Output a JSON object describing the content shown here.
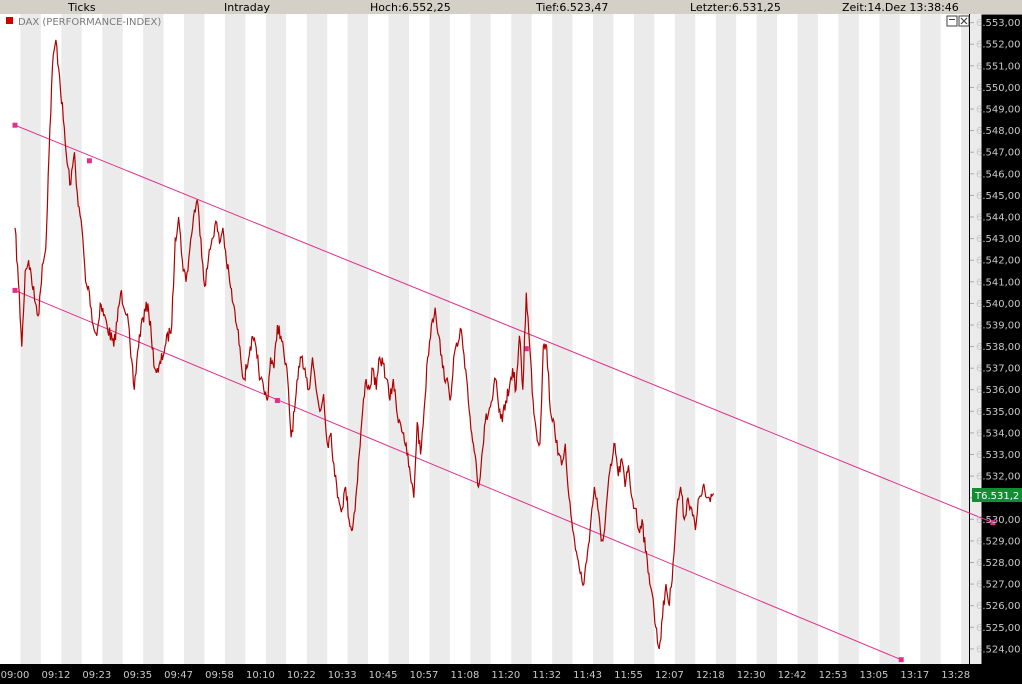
{
  "header": {
    "mode": "Ticks",
    "period": "Intraday",
    "high": "Hoch:6.552,25",
    "low": "Tief:6.523,47",
    "last": "Letzter:6.531,25",
    "time": "Zeit:14.Dez 13:38:46"
  },
  "instrument_label": "DAX (PERFORMANCE-INDEX)",
  "price_tag": "T6.531,2",
  "colors": {
    "price_line": "#b00000",
    "channel": "#e0308c",
    "band_light": "#ebebeb",
    "tag_bg": "#0f8f2f"
  },
  "chart_data": {
    "type": "line",
    "title": "DAX (PERFORMANCE-INDEX)",
    "xlabel": "",
    "ylabel": "",
    "ylim": [
      6523.3,
      6553.4
    ],
    "y_ticks": [
      "6.553,00",
      "6.552,00",
      "6.551,00",
      "6.550,00",
      "6.549,00",
      "6.548,00",
      "6.547,00",
      "6.546,00",
      "6.545,00",
      "6.544,00",
      "6.543,00",
      "6.542,00",
      "6.541,00",
      "6.540,00",
      "6.539,00",
      "6.538,00",
      "6.537,00",
      "6.536,00",
      "6.535,00",
      "6.534,00",
      "6.533,00",
      "6.532,00",
      "6.531,00",
      "6.530,00",
      "6.529,00",
      "6.528,00",
      "6.527,00",
      "6.526,00",
      "6.525,00",
      "6.524,00"
    ],
    "x_ticks": [
      "09:00",
      "09:12",
      "09:23",
      "09:35",
      "09:47",
      "09:58",
      "10:10",
      "10:22",
      "10:33",
      "10:45",
      "10:57",
      "11:08",
      "11:20",
      "11:32",
      "11:43",
      "11:55",
      "12:07",
      "12:18",
      "12:30",
      "12:42",
      "12:53",
      "13:05",
      "13:17",
      "13:28"
    ],
    "x_range": [
      "09:00",
      "13:38"
    ],
    "grid": "alternating vertical bands",
    "series": [
      {
        "values": [
          [
            "09:00",
            6543.5
          ],
          [
            "09:01",
            6541.0
          ],
          [
            "09:02",
            6538.0
          ],
          [
            "09:03",
            6541.5
          ],
          [
            "09:04",
            6542.0
          ],
          [
            "09:06",
            6540.0
          ],
          [
            "09:07",
            6539.5
          ],
          [
            "09:08",
            6541.8
          ],
          [
            "09:09",
            6542.5
          ],
          [
            "09:10",
            6547.0
          ],
          [
            "09:11",
            6551.0
          ],
          [
            "09:12",
            6552.2
          ],
          [
            "09:13",
            6550.5
          ],
          [
            "09:14",
            6548.5
          ],
          [
            "09:15",
            6546.5
          ],
          [
            "09:16",
            6545.5
          ],
          [
            "09:17",
            6547.0
          ],
          [
            "09:18",
            6544.5
          ],
          [
            "09:19",
            6543.5
          ],
          [
            "09:20",
            6541.0
          ],
          [
            "09:21",
            6540.5
          ],
          [
            "09:22",
            6539.0
          ],
          [
            "09:23",
            6538.5
          ],
          [
            "09:24",
            6540.0
          ],
          [
            "09:26",
            6539.0
          ],
          [
            "09:28",
            6538.0
          ],
          [
            "09:30",
            6540.5
          ],
          [
            "09:32",
            6539.5
          ],
          [
            "09:33",
            6537.5
          ],
          [
            "09:34",
            6536.0
          ],
          [
            "09:35",
            6537.8
          ],
          [
            "09:36",
            6539.0
          ],
          [
            "09:38",
            6540.0
          ],
          [
            "09:39",
            6538.5
          ],
          [
            "09:40",
            6537.0
          ],
          [
            "09:41",
            6536.8
          ],
          [
            "09:43",
            6538.0
          ],
          [
            "09:45",
            6539.0
          ],
          [
            "09:46",
            6543.0
          ],
          [
            "09:47",
            6544.0
          ],
          [
            "09:48",
            6542.0
          ],
          [
            "09:49",
            6541.0
          ],
          [
            "09:50",
            6542.5
          ],
          [
            "09:51",
            6544.0
          ],
          [
            "09:52",
            6544.8
          ],
          [
            "09:53",
            6543.0
          ],
          [
            "09:54",
            6540.8
          ],
          [
            "09:55",
            6542.0
          ],
          [
            "09:56",
            6543.0
          ],
          [
            "09:57",
            6543.8
          ],
          [
            "09:58",
            6542.8
          ],
          [
            "09:59",
            6543.5
          ],
          [
            "10:00",
            6542.0
          ],
          [
            "10:01",
            6541.0
          ],
          [
            "10:02",
            6540.0
          ],
          [
            "10:03",
            6539.0
          ],
          [
            "10:04",
            6538.0
          ],
          [
            "10:05",
            6536.5
          ],
          [
            "10:06",
            6537.0
          ],
          [
            "10:07",
            6538.0
          ],
          [
            "10:08",
            6538.3
          ],
          [
            "10:09",
            6537.5
          ],
          [
            "10:10",
            6536.5
          ],
          [
            "10:11",
            6536.0
          ],
          [
            "10:12",
            6535.5
          ],
          [
            "10:13",
            6537.5
          ],
          [
            "10:14",
            6537.0
          ],
          [
            "10:15",
            6539.0
          ],
          [
            "10:16",
            6538.5
          ],
          [
            "10:17",
            6537.5
          ],
          [
            "10:18",
            6536.5
          ],
          [
            "10:19",
            6533.8
          ],
          [
            "10:20",
            6535.0
          ],
          [
            "10:21",
            6536.5
          ],
          [
            "10:22",
            6537.5
          ],
          [
            "10:23",
            6537.0
          ],
          [
            "10:24",
            6536.0
          ],
          [
            "10:25",
            6537.5
          ],
          [
            "10:26",
            6536.0
          ],
          [
            "10:27",
            6535.0
          ],
          [
            "10:28",
            6535.8
          ],
          [
            "10:29",
            6533.5
          ],
          [
            "10:30",
            6534.0
          ],
          [
            "10:31",
            6532.0
          ],
          [
            "10:32",
            6531.0
          ],
          [
            "10:33",
            6530.5
          ],
          [
            "10:34",
            6531.5
          ],
          [
            "10:35",
            6530.0
          ],
          [
            "10:36",
            6529.5
          ],
          [
            "10:37",
            6531.0
          ],
          [
            "10:38",
            6533.0
          ],
          [
            "10:39",
            6535.0
          ],
          [
            "10:40",
            6536.5
          ],
          [
            "10:41",
            6536.0
          ],
          [
            "10:42",
            6537.0
          ],
          [
            "10:43",
            6536.0
          ],
          [
            "10:44",
            6537.5
          ],
          [
            "10:45",
            6537.2
          ],
          [
            "10:46",
            6536.5
          ],
          [
            "10:47",
            6535.5
          ],
          [
            "10:48",
            6536.5
          ],
          [
            "10:49",
            6535.0
          ],
          [
            "10:50",
            6534.5
          ],
          [
            "10:51",
            6534.0
          ],
          [
            "10:52",
            6533.0
          ],
          [
            "10:53",
            6532.0
          ],
          [
            "10:54",
            6531.0
          ],
          [
            "10:55",
            6534.5
          ],
          [
            "10:56",
            6533.0
          ],
          [
            "10:57",
            6535.0
          ],
          [
            "10:58",
            6537.5
          ],
          [
            "10:59",
            6539.0
          ],
          [
            "11:00",
            6539.8
          ],
          [
            "11:01",
            6538.5
          ],
          [
            "11:02",
            6537.0
          ],
          [
            "11:03",
            6536.5
          ],
          [
            "11:04",
            6535.5
          ],
          [
            "11:05",
            6537.5
          ],
          [
            "11:06",
            6538.0
          ],
          [
            "11:07",
            6538.8
          ],
          [
            "11:08",
            6537.0
          ],
          [
            "11:09",
            6535.5
          ],
          [
            "11:10",
            6534.0
          ],
          [
            "11:11",
            6533.0
          ],
          [
            "11:12",
            6531.5
          ],
          [
            "11:13",
            6533.0
          ],
          [
            "11:14",
            6534.5
          ],
          [
            "11:15",
            6535.0
          ],
          [
            "11:16",
            6535.5
          ],
          [
            "11:17",
            6536.5
          ],
          [
            "11:18",
            6535.0
          ],
          [
            "11:19",
            6534.5
          ],
          [
            "11:20",
            6535.5
          ],
          [
            "11:21",
            6536.0
          ],
          [
            "11:22",
            6537.0
          ],
          [
            "11:23",
            6536.0
          ],
          [
            "11:24",
            6538.5
          ],
          [
            "11:25",
            6536.0
          ],
          [
            "11:26",
            6540.5
          ],
          [
            "11:27",
            6538.0
          ],
          [
            "11:28",
            6535.5
          ],
          [
            "11:29",
            6534.0
          ],
          [
            "11:30",
            6533.5
          ],
          [
            "11:31",
            6538.0
          ],
          [
            "11:32",
            6538.0
          ],
          [
            "11:33",
            6535.0
          ],
          [
            "11:34",
            6534.5
          ],
          [
            "11:35",
            6533.0
          ],
          [
            "11:36",
            6532.5
          ],
          [
            "11:37",
            6533.5
          ],
          [
            "11:38",
            6531.0
          ],
          [
            "11:39",
            6529.5
          ],
          [
            "11:40",
            6528.5
          ],
          [
            "11:41",
            6527.5
          ],
          [
            "11:42",
            6527.0
          ],
          [
            "11:43",
            6528.5
          ],
          [
            "11:44",
            6530.0
          ],
          [
            "11:45",
            6531.5
          ],
          [
            "11:46",
            6530.5
          ],
          [
            "11:47",
            6529.0
          ],
          [
            "11:48",
            6529.5
          ],
          [
            "11:49",
            6531.5
          ],
          [
            "11:50",
            6532.5
          ],
          [
            "11:51",
            6533.5
          ],
          [
            "11:52",
            6532.0
          ],
          [
            "11:53",
            6532.8
          ],
          [
            "11:54",
            6531.5
          ],
          [
            "11:55",
            6532.5
          ],
          [
            "11:56",
            6531.0
          ],
          [
            "11:57",
            6530.5
          ],
          [
            "11:58",
            6529.5
          ],
          [
            "11:59",
            6530.0
          ],
          [
            "12:00",
            6528.5
          ],
          [
            "12:01",
            6527.5
          ],
          [
            "12:02",
            6526.5
          ],
          [
            "12:03",
            6525.0
          ],
          [
            "12:04",
            6524.0
          ],
          [
            "12:05",
            6525.5
          ],
          [
            "12:06",
            6527.0
          ],
          [
            "12:07",
            6526.0
          ],
          [
            "12:08",
            6528.0
          ],
          [
            "12:09",
            6530.5
          ],
          [
            "12:10",
            6531.5
          ],
          [
            "12:11",
            6530.0
          ],
          [
            "12:12",
            6531.0
          ],
          [
            "12:13",
            6530.5
          ],
          [
            "12:14",
            6529.5
          ],
          [
            "12:15",
            6531.0
          ],
          [
            "12:16",
            6531.5
          ],
          [
            "12:17",
            6531.0
          ],
          [
            "12:18",
            6530.8
          ],
          [
            "12:19",
            6531.2
          ]
        ]
      }
    ],
    "annotations": [
      "Price channel: upper and lower parallel trend lines"
    ]
  }
}
